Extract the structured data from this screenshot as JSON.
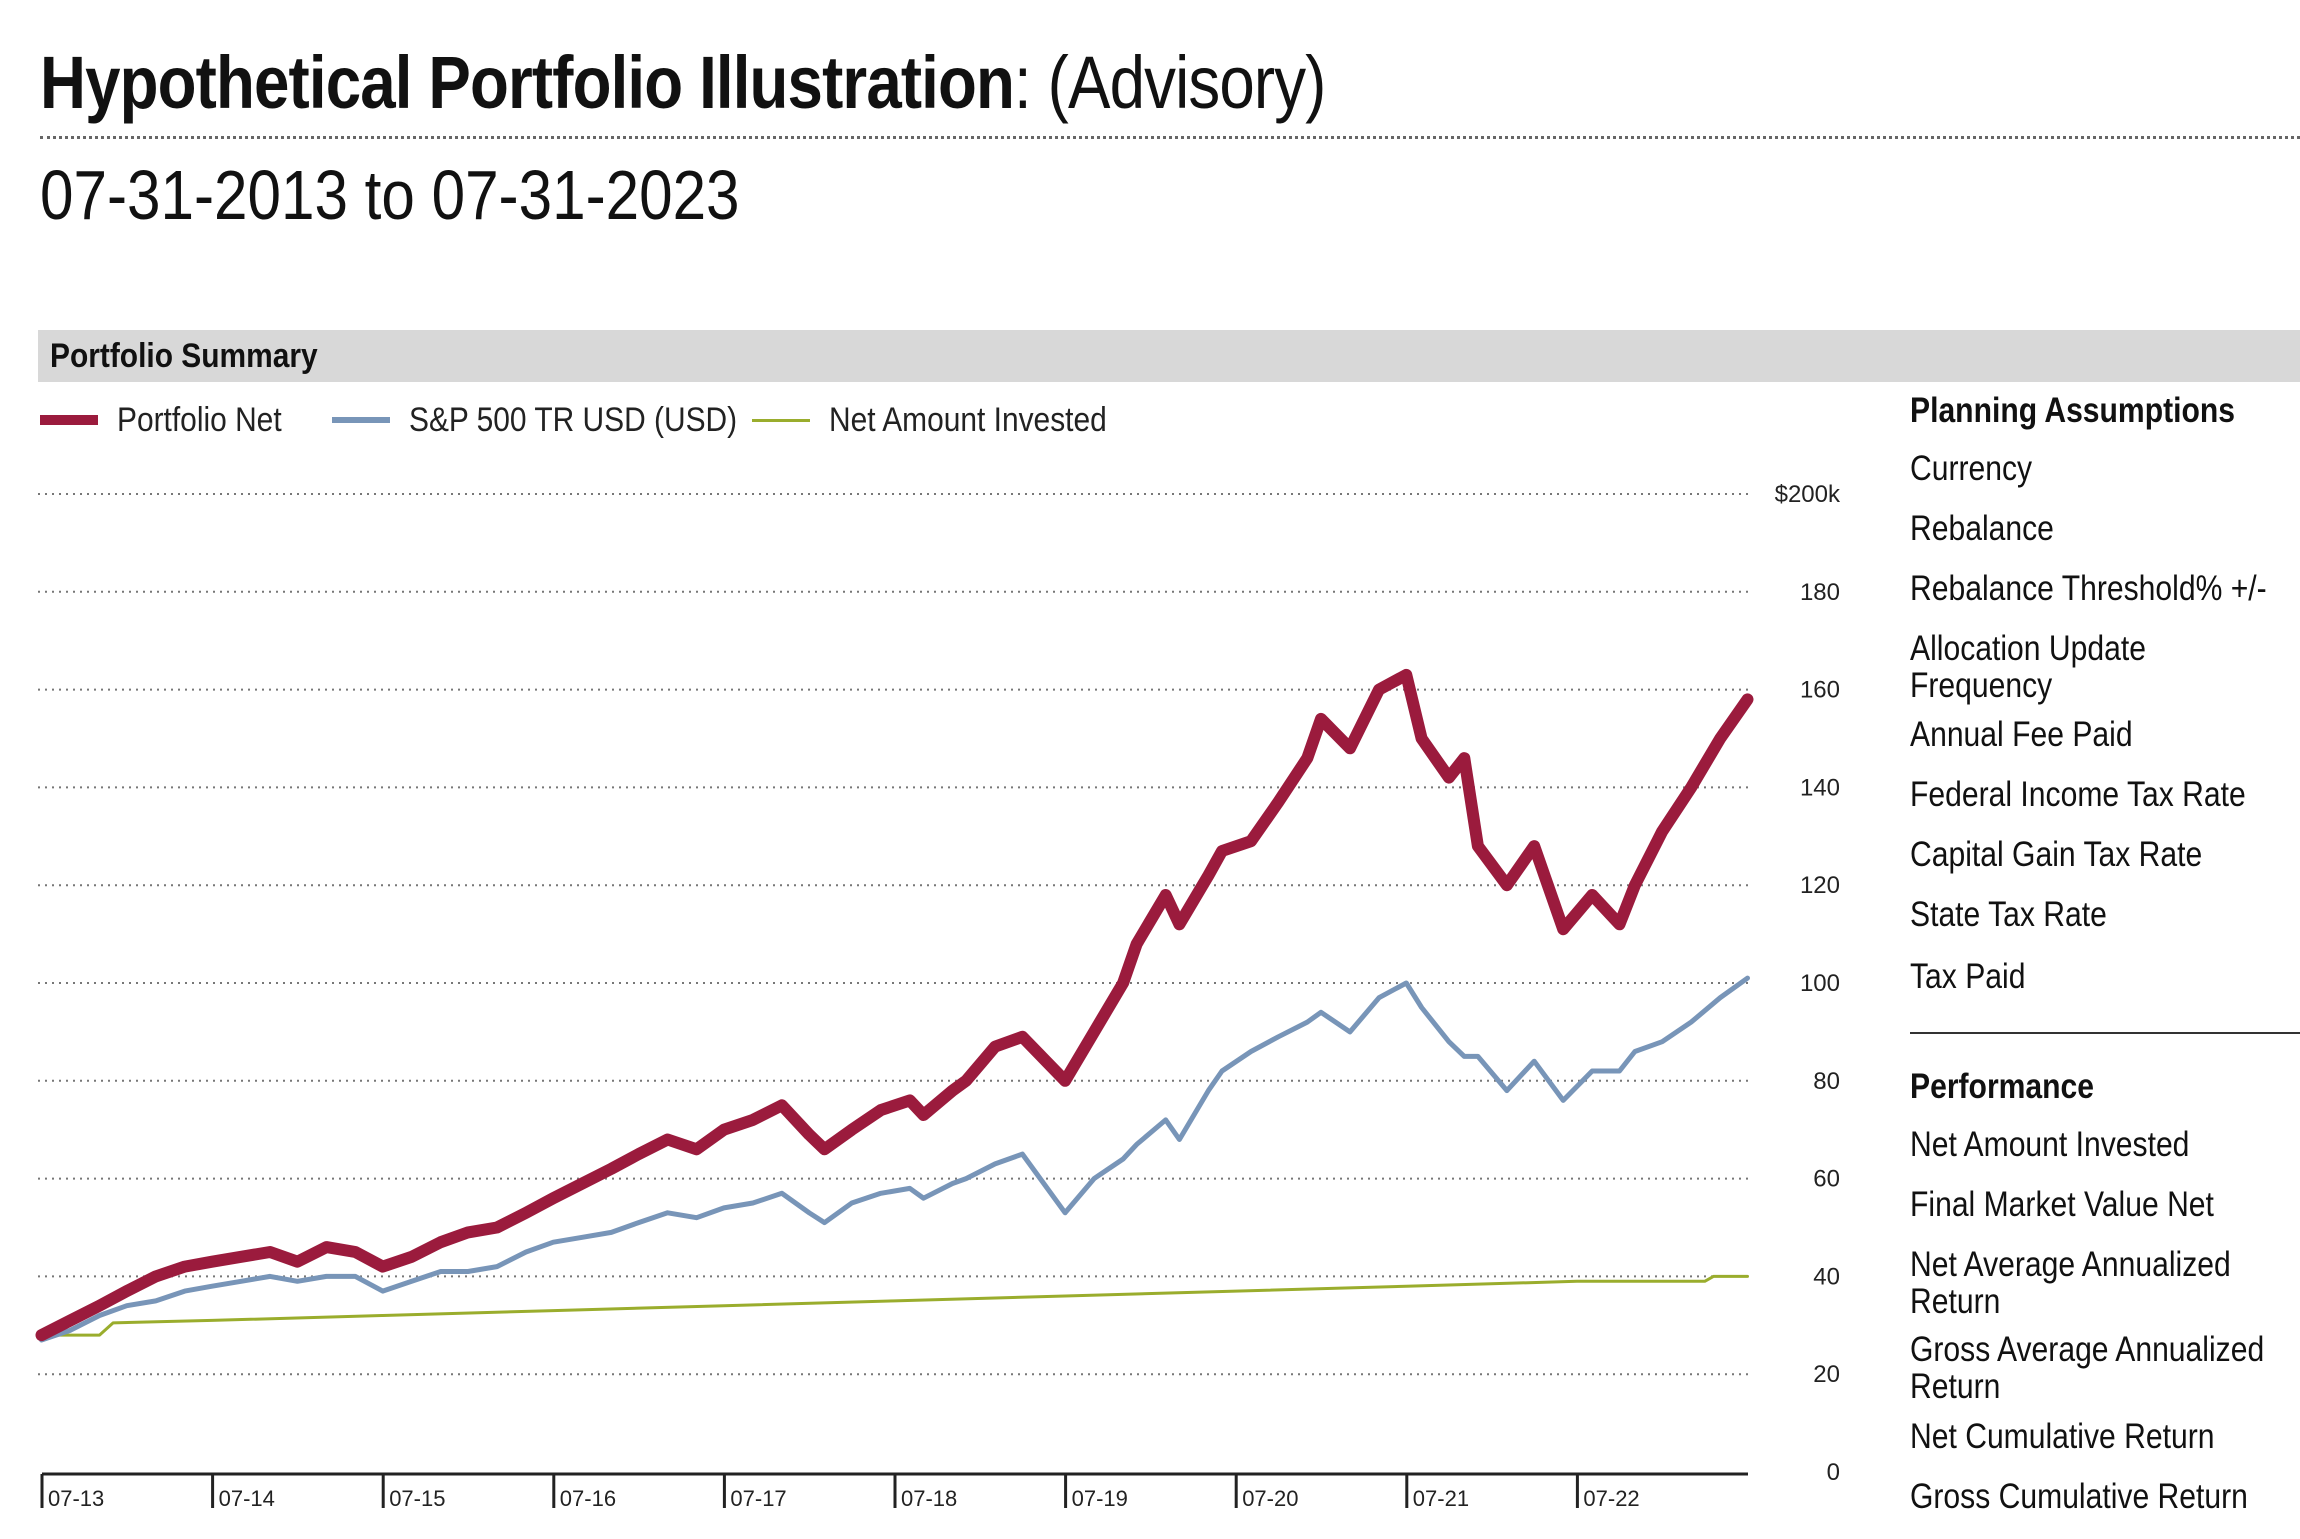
{
  "header": {
    "title_bold": "Hypothetical Portfolio Illustration",
    "title_rest": ": (Advisory)",
    "date_range": "07-31-2013 to 07-31-2023"
  },
  "section": {
    "label": "Portfolio Summary"
  },
  "colors": {
    "portfolio_net": "#9b1b3d",
    "sp500": "#7895b8",
    "net_invested": "#9aad2d",
    "section_bg": "#d8d8d8"
  },
  "chart_data": {
    "type": "line",
    "title": "Portfolio Summary",
    "ylabel": "",
    "xlabel": "",
    "y_axis_position": "right",
    "ylim": [
      0,
      200
    ],
    "yticks": [
      0,
      20,
      40,
      60,
      80,
      100,
      120,
      140,
      160,
      180,
      200
    ],
    "ytick_labels": [
      "0",
      "20",
      "40",
      "60",
      "80",
      "100",
      "120",
      "140",
      "160",
      "180",
      "$200k"
    ],
    "xlim": [
      2013.583,
      2023.583
    ],
    "xticks": [
      2013.583,
      2014.583,
      2015.583,
      2016.583,
      2017.583,
      2018.583,
      2019.583,
      2020.583,
      2021.583,
      2022.583
    ],
    "xtick_labels": [
      "07-13",
      "07-14",
      "07-15",
      "07-16",
      "07-17",
      "07-18",
      "07-19",
      "07-20",
      "07-21",
      "07-22"
    ],
    "grid": true,
    "legend": "top-left",
    "series": [
      {
        "name": "Portfolio Net",
        "color": "#9b1b3d",
        "x": [
          2013.58,
          2013.75,
          2013.92,
          2014.08,
          2014.25,
          2014.42,
          2014.58,
          2014.75,
          2014.92,
          2015.08,
          2015.25,
          2015.42,
          2015.58,
          2015.75,
          2015.92,
          2016.08,
          2016.25,
          2016.42,
          2016.58,
          2016.75,
          2016.92,
          2017.08,
          2017.25,
          2017.42,
          2017.58,
          2017.75,
          2017.92,
          2018.08,
          2018.17,
          2018.33,
          2018.5,
          2018.67,
          2018.75,
          2018.92,
          2019.0,
          2019.17,
          2019.33,
          2019.58,
          2019.75,
          2019.92,
          2020.0,
          2020.17,
          2020.25,
          2020.42,
          2020.5,
          2020.67,
          2020.83,
          2021.0,
          2021.08,
          2021.25,
          2021.42,
          2021.58,
          2021.67,
          2021.83,
          2021.92,
          2022.0,
          2022.17,
          2022.33,
          2022.5,
          2022.67,
          2022.83,
          2022.92,
          2023.08,
          2023.25,
          2023.42,
          2023.58
        ],
        "values": [
          28,
          31,
          34,
          37,
          40,
          42,
          43,
          44,
          45,
          43,
          46,
          45,
          42,
          44,
          47,
          49,
          50,
          53,
          56,
          59,
          62,
          65,
          68,
          66,
          70,
          72,
          75,
          69,
          66,
          70,
          74,
          76,
          73,
          78,
          80,
          87,
          89,
          80,
          90,
          100,
          108,
          118,
          112,
          122,
          127,
          129,
          137,
          146,
          154,
          148,
          160,
          163,
          150,
          142,
          146,
          128,
          120,
          128,
          111,
          118,
          112,
          120,
          131,
          140,
          150,
          158
        ]
      },
      {
        "name": "S&P 500 TR USD (USD)",
        "color": "#7895b8",
        "x": [
          2013.58,
          2013.75,
          2013.92,
          2014.08,
          2014.25,
          2014.42,
          2014.58,
          2014.75,
          2014.92,
          2015.08,
          2015.25,
          2015.42,
          2015.58,
          2015.75,
          2015.92,
          2016.08,
          2016.25,
          2016.42,
          2016.58,
          2016.75,
          2016.92,
          2017.08,
          2017.25,
          2017.42,
          2017.58,
          2017.75,
          2017.92,
          2018.08,
          2018.17,
          2018.33,
          2018.5,
          2018.67,
          2018.75,
          2018.92,
          2019.0,
          2019.17,
          2019.33,
          2019.58,
          2019.75,
          2019.92,
          2020.0,
          2020.17,
          2020.25,
          2020.42,
          2020.5,
          2020.67,
          2020.83,
          2021.0,
          2021.08,
          2021.25,
          2021.42,
          2021.58,
          2021.67,
          2021.83,
          2021.92,
          2022.0,
          2022.17,
          2022.33,
          2022.5,
          2022.67,
          2022.83,
          2022.92,
          2023.08,
          2023.25,
          2023.42,
          2023.58
        ],
        "values": [
          27,
          29,
          32,
          34,
          35,
          37,
          38,
          39,
          40,
          39,
          40,
          40,
          37,
          39,
          41,
          41,
          42,
          45,
          47,
          48,
          49,
          51,
          53,
          52,
          54,
          55,
          57,
          53,
          51,
          55,
          57,
          58,
          56,
          59,
          60,
          63,
          65,
          53,
          60,
          64,
          67,
          72,
          68,
          78,
          82,
          86,
          89,
          92,
          94,
          90,
          97,
          100,
          95,
          88,
          85,
          85,
          78,
          84,
          76,
          82,
          82,
          86,
          88,
          92,
          97,
          101
        ]
      },
      {
        "name": "Net Amount Invested",
        "color": "#9aad2d",
        "x": [
          2013.58,
          2013.67,
          2013.92,
          2014.0,
          2014.58,
          2015.58,
          2016.58,
          2017.58,
          2018.58,
          2019.58,
          2020.58,
          2021.58,
          2022.58,
          2023.33,
          2023.38,
          2023.58
        ],
        "values": [
          28,
          28,
          28,
          30.5,
          31,
          32,
          33,
          34,
          35,
          36,
          37,
          38,
          39,
          39,
          40,
          40
        ]
      }
    ]
  },
  "panel": {
    "planning_heading": "Planning Assumptions",
    "planning_items": [
      "Currency",
      "Rebalance",
      "Rebalance Threshold% +/-",
      "Allocation Update Frequency",
      "Annual Fee Paid",
      "Federal Income Tax Rate",
      "Capital Gain Tax Rate",
      "State Tax Rate",
      "Tax Paid"
    ],
    "performance_heading": "Performance",
    "performance_items": [
      "Net Amount Invested",
      "Final Market Value Net",
      "Net Average Annualized Return",
      "Gross Average Annualized Return",
      "Net Cumulative Return",
      "Gross Cumulative Return"
    ]
  }
}
